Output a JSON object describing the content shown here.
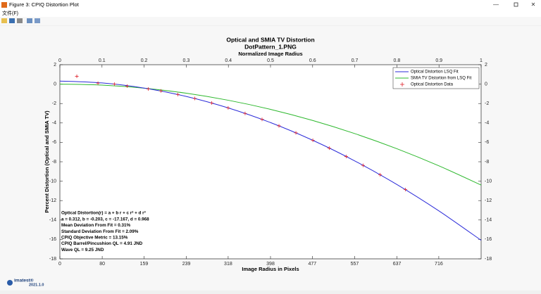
{
  "window_title": "Figure 3: CPIQ Distortion Plot",
  "menu": [
    "文件(F)"
  ],
  "footer": {
    "logo": "imatest®",
    "version": "2021.1.0"
  },
  "chart_data": {
    "type": "line",
    "title": "Optical and SMIA TV Distortion",
    "subtitle": "DotPattern_1.PNG",
    "x2_label": "Normalized Image Radius",
    "x_label": "Image Radius in Pixels",
    "y_label": "Percent Distortion (Optical and SMIA TV)",
    "xlim": [
      0,
      796
    ],
    "xticks": [
      0,
      80,
      159,
      239,
      318,
      398,
      477,
      557,
      637,
      716
    ],
    "x2lim": [
      0,
      1
    ],
    "x2ticks": [
      0,
      0.1,
      0.2,
      0.3,
      0.4,
      0.5,
      0.6,
      0.7,
      0.8,
      0.9,
      1
    ],
    "ylim": [
      -18,
      2
    ],
    "yticks": [
      2,
      0,
      -2,
      -4,
      -6,
      -8,
      -10,
      -12,
      -14,
      -16,
      -18
    ],
    "y2lim": [
      -18,
      2
    ],
    "y2ticks": [
      2,
      0,
      -2,
      -4,
      -6,
      -8,
      -10,
      -12,
      -14,
      -16,
      -18
    ],
    "legend": "upper right",
    "series": [
      {
        "name": "Optical Distortion LSQ Fit",
        "color": "#2b2bd9",
        "style": "line",
        "x": [
          0,
          79.6,
          159.2,
          238.8,
          318.4,
          398,
          477.6,
          557.2,
          636.8,
          716.4,
          796
        ],
        "values": [
          0.312,
          0.121,
          -0.408,
          -1.268,
          -2.454,
          -3.96,
          -5.781,
          -7.91,
          -10.342,
          -13.07,
          -16.09
        ]
      },
      {
        "name": "SMIA TV Distortion from LSQ Fit",
        "color": "#2db82d",
        "style": "line",
        "x": [
          0,
          79.6,
          159.2,
          238.8,
          318.4,
          398,
          477.6,
          557.2,
          636.8,
          716.4,
          796
        ],
        "values": [
          0,
          -0.104,
          -0.416,
          -0.936,
          -1.664,
          -2.6,
          -3.744,
          -5.096,
          -6.656,
          -8.424,
          -10.4
        ]
      },
      {
        "name": "Optical Distortion Data",
        "color": "#e0202a",
        "style": "marker",
        "x": [
          32,
          72,
          103,
          127,
          167,
          191,
          223,
          255,
          287,
          318,
          350,
          382,
          414,
          446,
          478,
          509,
          541,
          573,
          605,
          653
        ],
        "values": [
          0.8,
          0.1,
          0,
          -0.2,
          -0.5,
          -0.7,
          -1.07,
          -1.48,
          -1.94,
          -2.45,
          -3.02,
          -3.63,
          -4.3,
          -5.02,
          -5.78,
          -6.6,
          -7.46,
          -8.37,
          -9.33,
          -10.86
        ]
      }
    ],
    "annotations": [
      "Optical Distortion(r) = a + b r + c r² + d r³",
      "a = 0.312, b = -0.203, c = -17.167, d = 0.968",
      "Mean Deviation From Fit = 0.31%",
      "Standard Deviation From Fit = 2.09%",
      "CPIQ Objective Metric = 13.15%",
      "CPIQ Barrel/Pincushion QL = 4.91 JND",
      "Wave QL = 9.25 JND"
    ]
  }
}
